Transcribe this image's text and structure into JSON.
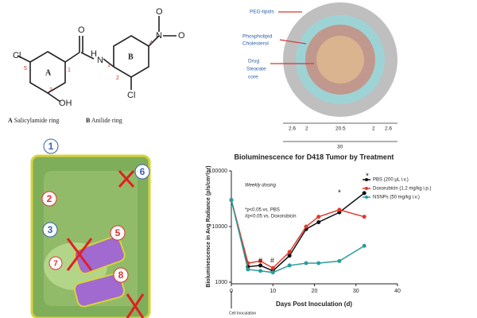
{
  "chemical": {
    "atoms": [
      "Cl",
      "O",
      "H",
      "N",
      "N",
      "O",
      "O",
      "OH",
      "Cl"
    ],
    "positions": [
      "5",
      "1",
      "2",
      "1",
      "2",
      "4"
    ],
    "rings": [
      "A",
      "B"
    ],
    "captions": [
      {
        "letter": "A",
        "text": "Salicylamide ring"
      },
      {
        "letter": "B",
        "text": "Anilide ring"
      }
    ]
  },
  "nanoparticle": {
    "labels": [
      "PEG-lipids",
      "Phospholipid",
      "Cholesterol",
      "Drug",
      "Stearate",
      "core"
    ],
    "dimensions": [
      "2.6",
      "2",
      "20.5",
      "2",
      "2.6"
    ],
    "total": "30"
  },
  "cell_diagram": {
    "steps": [
      "1",
      "2",
      "3",
      "5",
      "6",
      "7",
      "8"
    ]
  },
  "chart_data": {
    "type": "line",
    "title": "Bioluminescence for D418 Tumor by Treatment",
    "x_label": "Days Post Inoculation (d)",
    "y_label": "Bioluminescence in Avg Radiance (p/s/cm²/sr)",
    "x": [
      0,
      4,
      7,
      10,
      14,
      18,
      21,
      26,
      32
    ],
    "series": [
      {
        "name": "PBS (200 μL i.v.)",
        "color": "#111111",
        "values": [
          30000,
          1900,
          2000,
          1600,
          3000,
          9000,
          12000,
          18000,
          40000
        ]
      },
      {
        "name": "Doxorubicin (1.2 mg/kg i.p.)",
        "color": "#e03a2f",
        "values": [
          30000,
          2200,
          2400,
          1800,
          3500,
          10000,
          15000,
          20000,
          15000
        ]
      },
      {
        "name": "NSNPs (50 mg/kg i.v.)",
        "color": "#2a9d9a",
        "values": [
          30000,
          1700,
          1600,
          1500,
          2000,
          2200,
          2200,
          2400,
          4500
        ]
      }
    ],
    "xlim": [
      0,
      40
    ],
    "xticks": [
      0,
      10,
      20,
      30,
      40
    ],
    "ylim": [
      1000,
      100000
    ],
    "yticks": [
      1000,
      10000,
      100000
    ],
    "log_y": true,
    "legend": "upper right",
    "annotations": [
      "Weekly dosing",
      "*p<0.05 vs. PBS",
      "#p<0.05 vs. Doxorubicin",
      "Cell Inoculation",
      "#",
      "#",
      "*",
      "*"
    ]
  }
}
